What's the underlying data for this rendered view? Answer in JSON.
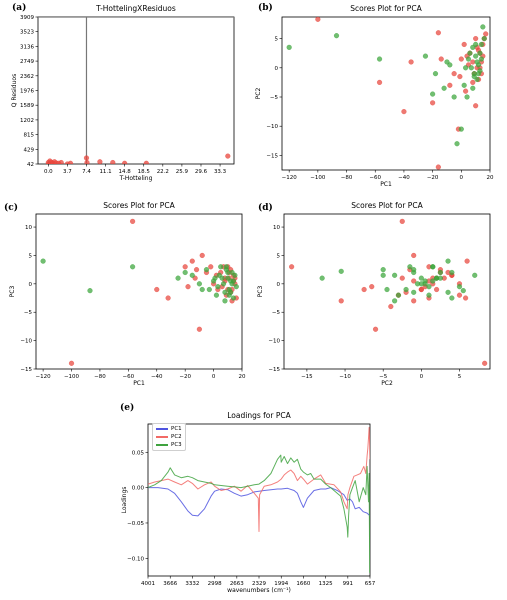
{
  "labels": {
    "a": "(a)",
    "b": "(b)",
    "c": "(c)",
    "d": "(d)",
    "e": "(e)"
  },
  "colors": {
    "red": "#e8453c",
    "green": "#3aa53a",
    "blue": "#4f55e0",
    "red_line": "#f26a66",
    "green_line": "#3fa33f",
    "guide": "#777777"
  },
  "chart_data": [
    {
      "id": "a",
      "type": "scatter",
      "title": "T-HottelingXResiduos",
      "xlabel": "T-Hotteling",
      "ylabel": "Q Residuos",
      "xlim": [
        -2,
        36
      ],
      "ylim": [
        42,
        3909
      ],
      "xticks": [
        0.0,
        3.7,
        7.4,
        11.1,
        14.8,
        18.5,
        22.2,
        25.9,
        29.6,
        33.3
      ],
      "xtick_labels": [
        "0.0",
        "3.7",
        "7.4",
        "11.1",
        "14.8",
        "18.5",
        "22.2",
        "25.9",
        "29.6",
        "33.3"
      ],
      "yticks": [
        42,
        429,
        815,
        1202,
        1589,
        1976,
        2362,
        2749,
        3136,
        3523,
        3909
      ],
      "ytick_labels": [
        "42",
        "429",
        "815",
        "1202",
        "1589",
        "1976",
        "2362",
        "2749",
        "3136",
        "3523",
        "3909"
      ],
      "hline_y": 3909,
      "vline_x": 7.4,
      "x": [
        0.0,
        0.1,
        0.3,
        0.6,
        0.9,
        1.2,
        1.5,
        2.0,
        2.5,
        3.7,
        4.3,
        7.4,
        7.5,
        10.0,
        12.5,
        14.8,
        19.0,
        34.8
      ],
      "y": [
        80,
        42,
        120,
        90,
        60,
        100,
        70,
        60,
        80,
        42,
        60,
        200,
        80,
        100,
        80,
        60,
        60,
        250
      ]
    },
    {
      "id": "b",
      "type": "scatter",
      "title": "Scores Plot for PCA",
      "xlabel": "PC1",
      "ylabel": "PC2",
      "xlim": [
        -125,
        20
      ],
      "ylim": [
        -17.5,
        8.7
      ],
      "xticks": [
        -120,
        -100,
        -80,
        -60,
        -40,
        -20,
        0,
        20
      ],
      "xtick_labels": [
        "−120",
        "−100",
        "−80",
        "−60",
        "−40",
        "−20",
        "0",
        "20"
      ],
      "yticks": [
        -15,
        -10,
        -5,
        0,
        5
      ],
      "ytick_labels": [
        "−15",
        "−10",
        "−5",
        "0",
        "5"
      ],
      "series": [
        {
          "color": "red",
          "x": [
            -100,
            -57,
            -40,
            -35,
            -20,
            -16,
            -16,
            -14,
            -8,
            -5,
            -2,
            0,
            2,
            4,
            6,
            8,
            9,
            10,
            11,
            12,
            13,
            14,
            15,
            16,
            17,
            10,
            12,
            14,
            5,
            8,
            11,
            13,
            15,
            3,
            -1
          ],
          "y": [
            8.3,
            -2.5,
            -7.5,
            1.0,
            -6.0,
            6.0,
            -17.0,
            1.5,
            -3.0,
            -1.0,
            -10.5,
            1.5,
            4.0,
            2.0,
            2.5,
            1.0,
            -1.0,
            5.0,
            0.0,
            3.0,
            2.5,
            -1.0,
            4.0,
            5.0,
            5.8,
            -6.5,
            -2.0,
            1.0,
            0.5,
            -2.5,
            3.5,
            0.0,
            2.0,
            -4.0,
            -1.5
          ]
        },
        {
          "color": "green",
          "x": [
            -120,
            -87,
            -57,
            -25,
            -18,
            -12,
            -8,
            -5,
            -3,
            0,
            2,
            4,
            5,
            7,
            8,
            9,
            10,
            11,
            12,
            13,
            14,
            15,
            16,
            9,
            11,
            13,
            6,
            8,
            10,
            12,
            14,
            -10,
            -20,
            3
          ],
          "y": [
            3.5,
            5.5,
            1.5,
            2.0,
            -1.0,
            -3.5,
            0.5,
            -5.0,
            -13.0,
            -10.5,
            -3.0,
            -5.0,
            1.5,
            0.0,
            3.5,
            -1.0,
            2.0,
            -2.0,
            0.5,
            2.5,
            4.0,
            7.0,
            5.0,
            -1.5,
            1.0,
            -0.5,
            2.5,
            -3.5,
            4.0,
            -1.0,
            1.5,
            1.0,
            -4.5,
            0.0
          ]
        }
      ]
    },
    {
      "id": "c",
      "type": "scatter",
      "title": "Scores Plot for PCA",
      "xlabel": "PC1",
      "ylabel": "PC3",
      "xlim": [
        -125,
        20
      ],
      "ylim": [
        -15,
        12.3
      ],
      "xticks": [
        -120,
        -100,
        -80,
        -60,
        -40,
        -20,
        0,
        20
      ],
      "xtick_labels": [
        "−120",
        "−100",
        "−80",
        "−60",
        "−40",
        "−20",
        "0",
        "20"
      ],
      "yticks": [
        -15,
        -10,
        -5,
        0,
        5,
        10
      ],
      "ytick_labels": [
        "−15",
        "−10",
        "−5",
        "0",
        "5",
        "10"
      ],
      "series": [
        {
          "color": "red",
          "x": [
            -100,
            -57,
            -40,
            -32,
            -20,
            -15,
            -13,
            -10,
            -8,
            -5,
            -2,
            0,
            2,
            3,
            5,
            7,
            8,
            9,
            10,
            11,
            12,
            13,
            14,
            15,
            16,
            10,
            12,
            14,
            6,
            8,
            11,
            13,
            15,
            -18,
            -12
          ],
          "y": [
            -14.0,
            11.0,
            -1.0,
            -2.5,
            3.0,
            4.0,
            1.0,
            -8.0,
            5.0,
            2.0,
            3.0,
            0.0,
            1.5,
            -1.0,
            2.0,
            3.0,
            0.5,
            -2.0,
            -1.0,
            1.0,
            2.5,
            -3.0,
            1.5,
            0.0,
            -2.5,
            3.0,
            -1.5,
            0.5,
            -0.5,
            1.0,
            2.0,
            -1.0,
            1.0,
            -0.5,
            2.5
          ]
        },
        {
          "color": "green",
          "x": [
            -120,
            -87,
            -57,
            -25,
            -20,
            -15,
            -10,
            -5,
            -3,
            0,
            2,
            4,
            5,
            7,
            8,
            9,
            10,
            11,
            12,
            13,
            14,
            15,
            16,
            9,
            11,
            13,
            6,
            8,
            10,
            12,
            14,
            3,
            -8,
            1
          ],
          "y": [
            4.0,
            -1.2,
            3.0,
            1.0,
            2.0,
            1.5,
            0.0,
            2.5,
            -1.0,
            0.5,
            -2.0,
            1.5,
            3.0,
            0.0,
            -1.5,
            2.5,
            1.0,
            -1.0,
            0.5,
            2.0,
            -2.5,
            1.5,
            -0.5,
            3.0,
            -2.0,
            0.0,
            1.0,
            -3.0,
            2.0,
            -1.5,
            0.5,
            -0.5,
            -1.0,
            1.0
          ]
        }
      ]
    },
    {
      "id": "d",
      "type": "scatter",
      "title": "Scores Plot for PCA",
      "xlabel": "PC2",
      "ylabel": "PC3",
      "xlim": [
        -18,
        9
      ],
      "ylim": [
        -15,
        12.3
      ],
      "xticks": [
        -15,
        -10,
        -5,
        0,
        5
      ],
      "xtick_labels": [
        "−15",
        "−10",
        "−5",
        "0",
        "5"
      ],
      "yticks": [
        -15,
        -10,
        -5,
        0,
        5,
        10
      ],
      "ytick_labels": [
        "−15",
        "−10",
        "−5",
        "0",
        "5",
        "10"
      ],
      "series": [
        {
          "color": "red",
          "x": [
            -17,
            8.3,
            -2.5,
            -7.5,
            1.0,
            -6.0,
            6.0,
            1.5,
            -3.0,
            -1.0,
            -10.5,
            1.5,
            4.0,
            2.0,
            2.5,
            1.0,
            -1.0,
            5.0,
            0.0,
            3.0,
            2.5,
            -1.0,
            4.0,
            5.0,
            5.8,
            -6.5,
            -2.0,
            1.0,
            0.5,
            -2.5,
            3.5,
            0.0,
            2.0,
            -4.0,
            -1.5
          ],
          "y": [
            3.0,
            -14.0,
            11.0,
            -1.0,
            -2.5,
            -8.0,
            4.0,
            1.0,
            -2.0,
            5.0,
            -3.0,
            0.0,
            1.5,
            -1.0,
            2.0,
            3.0,
            0.5,
            -2.0,
            -1.0,
            1.0,
            2.5,
            -3.0,
            1.5,
            0.0,
            -2.5,
            -0.5,
            -1.5,
            0.5,
            -0.5,
            1.0,
            2.0,
            -1.0,
            1.0,
            -4.0,
            2.5
          ]
        },
        {
          "color": "green",
          "x": [
            3.5,
            5.5,
            1.5,
            2.0,
            -1.0,
            -3.5,
            0.5,
            -5.0,
            -13.0,
            -10.5,
            -3.0,
            -5.0,
            1.5,
            0.0,
            3.5,
            -1.0,
            2.0,
            -2.0,
            0.5,
            2.5,
            4.0,
            7.0,
            5.0,
            -1.5,
            1.0,
            -0.5,
            2.5,
            -3.5,
            4.0,
            -1.0,
            1.5,
            1.0,
            -4.5,
            0.0
          ],
          "y": [
            4.0,
            -1.2,
            3.0,
            1.0,
            2.0,
            1.5,
            0.0,
            2.5,
            1.0,
            2.2,
            -2.0,
            1.5,
            3.0,
            0.0,
            -1.5,
            2.5,
            1.0,
            -1.0,
            0.5,
            2.0,
            -2.5,
            1.5,
            -0.5,
            3.0,
            -2.0,
            0.0,
            1.0,
            -3.0,
            2.0,
            -1.5,
            0.5,
            -0.5,
            -1.0,
            1.0
          ]
        }
      ]
    },
    {
      "id": "e",
      "type": "line",
      "title": "Loadings for PCA",
      "xlabel": "wavenumbers (cm⁻¹)",
      "ylabel": "Loadings",
      "xlim": [
        4001,
        657
      ],
      "ylim": [
        -0.125,
        0.09
      ],
      "xticks": [
        4001,
        3666,
        3332,
        2998,
        2663,
        2329,
        1994,
        1660,
        1325,
        991,
        657
      ],
      "xtick_labels": [
        "4001",
        "3666",
        "3332",
        "2998",
        "2663",
        "2329",
        "1994",
        "1660",
        "1325",
        "991",
        "657"
      ],
      "yticks": [
        -0.1,
        -0.05,
        0.0,
        0.05
      ],
      "ytick_labels": [
        "−0.10",
        "−0.05",
        "0.00",
        "0.05"
      ],
      "series": [
        {
          "name": "PC1",
          "color": "blue",
          "x": [
            4001,
            3850,
            3700,
            3600,
            3500,
            3400,
            3332,
            3250,
            3150,
            3050,
            2998,
            2900,
            2800,
            2700,
            2600,
            2500,
            2400,
            2329,
            2250,
            2150,
            2050,
            1994,
            1900,
            1800,
            1750,
            1700,
            1660,
            1600,
            1500,
            1400,
            1325,
            1250,
            1150,
            1050,
            1000,
            960,
            920,
            880,
            820,
            760,
            700,
            657
          ],
          "y": [
            0.0,
            0.0,
            -0.002,
            -0.008,
            -0.02,
            -0.033,
            -0.039,
            -0.04,
            -0.03,
            -0.012,
            -0.005,
            -0.002,
            -0.003,
            -0.008,
            -0.012,
            -0.01,
            -0.006,
            -0.005,
            -0.004,
            -0.003,
            -0.002,
            -0.002,
            -0.001,
            -0.004,
            -0.008,
            -0.02,
            -0.028,
            -0.015,
            -0.004,
            -0.002,
            -0.002,
            0.0,
            -0.004,
            -0.01,
            -0.018,
            -0.016,
            -0.02,
            -0.03,
            -0.028,
            -0.034,
            -0.036,
            -0.04
          ]
        },
        {
          "name": "PC2",
          "color": "red_line",
          "x": [
            4001,
            3900,
            3800,
            3700,
            3600,
            3500,
            3400,
            3332,
            3250,
            3150,
            3050,
            2998,
            2900,
            2800,
            2700,
            2600,
            2500,
            2400,
            2340,
            2329,
            2320,
            2250,
            2150,
            2050,
            1994,
            1950,
            1900,
            1850,
            1800,
            1750,
            1700,
            1660,
            1600,
            1500,
            1400,
            1325,
            1200,
            1100,
            1050,
            1000,
            990,
            960,
            900,
            850,
            800,
            750,
            720,
            700,
            690,
            680,
            670,
            662,
            657
          ],
          "y": [
            0.005,
            0.008,
            0.01,
            0.012,
            0.008,
            0.004,
            0.01,
            0.006,
            -0.002,
            0.004,
            0.008,
            0.002,
            -0.004,
            -0.002,
            0.002,
            -0.005,
            0.003,
            -0.008,
            -0.015,
            -0.062,
            -0.01,
            0.002,
            0.004,
            0.008,
            0.012,
            0.018,
            0.022,
            0.025,
            0.02,
            0.01,
            0.016,
            0.012,
            0.005,
            0.012,
            0.018,
            0.006,
            0.004,
            -0.006,
            -0.02,
            -0.03,
            -0.01,
            0.0,
            0.016,
            0.018,
            0.02,
            0.03,
            0.02,
            0.045,
            0.055,
            0.07,
            0.085,
            0.06,
            0.04
          ]
        },
        {
          "name": "PC3",
          "color": "green_line",
          "x": [
            4001,
            3900,
            3800,
            3700,
            3666,
            3600,
            3500,
            3400,
            3332,
            3250,
            3150,
            3050,
            2998,
            2900,
            2800,
            2700,
            2600,
            2500,
            2400,
            2329,
            2250,
            2150,
            2100,
            2050,
            2000,
            1994,
            1950,
            1900,
            1850,
            1800,
            1750,
            1700,
            1660,
            1600,
            1550,
            1500,
            1400,
            1325,
            1250,
            1200,
            1100,
            1050,
            1000,
            991,
            980,
            960,
            920,
            880,
            820,
            760,
            720,
            700,
            680,
            670,
            662,
            657
          ],
          "y": [
            0.0,
            0.004,
            0.01,
            0.022,
            0.028,
            0.018,
            0.014,
            0.016,
            0.014,
            0.01,
            0.008,
            0.006,
            0.004,
            0.003,
            0.002,
            0.001,
            0.0,
            0.002,
            0.004,
            0.005,
            0.01,
            0.02,
            0.03,
            0.04,
            0.046,
            0.036,
            0.044,
            0.034,
            0.042,
            0.036,
            0.04,
            0.026,
            0.022,
            0.018,
            0.02,
            0.012,
            0.012,
            0.005,
            0.0,
            -0.004,
            -0.012,
            -0.03,
            -0.056,
            -0.07,
            -0.04,
            -0.01,
            0.0,
            0.01,
            -0.02,
            0.0,
            -0.01,
            0.03,
            -0.02,
            0.02,
            -0.12,
            -0.06
          ]
        }
      ]
    }
  ]
}
